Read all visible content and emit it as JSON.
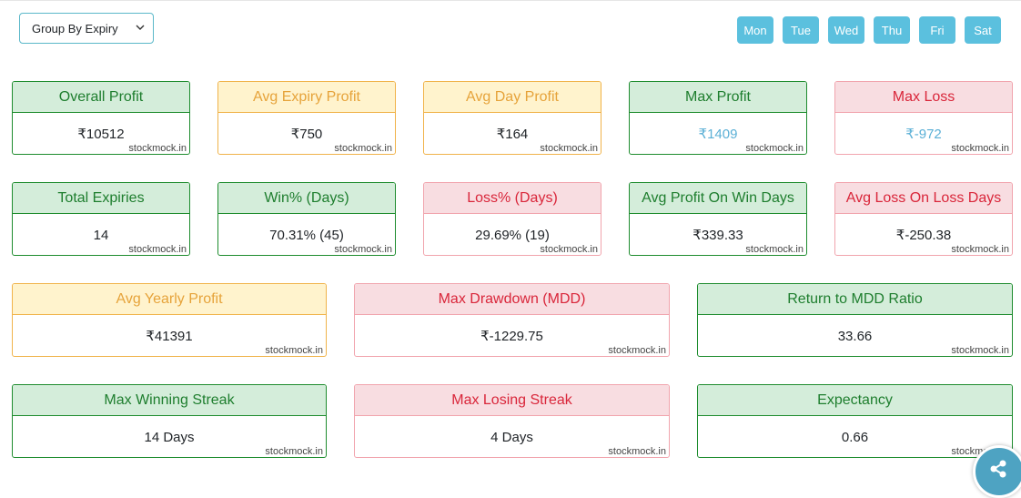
{
  "group_select": {
    "value": "Group By Expiry"
  },
  "days": [
    "Mon",
    "Tue",
    "Wed",
    "Thu",
    "Fri",
    "Sat"
  ],
  "watermark": "stockmock.in",
  "cards": {
    "overall_profit": {
      "title": "Overall Profit",
      "value": "₹10512"
    },
    "avg_expiry_profit": {
      "title": "Avg Expiry Profit",
      "value": "₹750"
    },
    "avg_day_profit": {
      "title": "Avg Day Profit",
      "value": "₹164"
    },
    "max_profit": {
      "title": "Max Profit",
      "value": "₹1409"
    },
    "max_loss": {
      "title": "Max Loss",
      "value": "₹-972"
    },
    "total_expiries": {
      "title": "Total Expiries",
      "value": "14"
    },
    "win_pct": {
      "title": "Win% (Days)",
      "value": "70.31% (45)"
    },
    "loss_pct": {
      "title": "Loss% (Days)",
      "value": "29.69% (19)"
    },
    "avg_profit_win": {
      "title": "Avg Profit On Win Days",
      "value": "₹339.33"
    },
    "avg_loss_loss": {
      "title": "Avg Loss On Loss Days",
      "value": "₹-250.38"
    },
    "avg_yearly_profit": {
      "title": "Avg Yearly Profit",
      "value": "₹41391"
    },
    "max_drawdown": {
      "title": "Max Drawdown (MDD)",
      "value": "₹-1229.75"
    },
    "return_mdd": {
      "title": "Return to MDD Ratio",
      "value": "33.66"
    },
    "max_win_streak": {
      "title": "Max Winning Streak",
      "value": "14 Days"
    },
    "max_loss_streak": {
      "title": "Max Losing Streak",
      "value": "4 Days"
    },
    "expectancy": {
      "title": "Expectancy",
      "value": "0.66"
    }
  },
  "colors": {
    "green": "#1e7e2e",
    "yellow": "#e6a33a",
    "red": "#d9263a",
    "day_button": "#5bc0de",
    "share_button": "#4ea3c2"
  },
  "icons": {
    "select": "chevron-down-icon",
    "share": "share-icon"
  }
}
